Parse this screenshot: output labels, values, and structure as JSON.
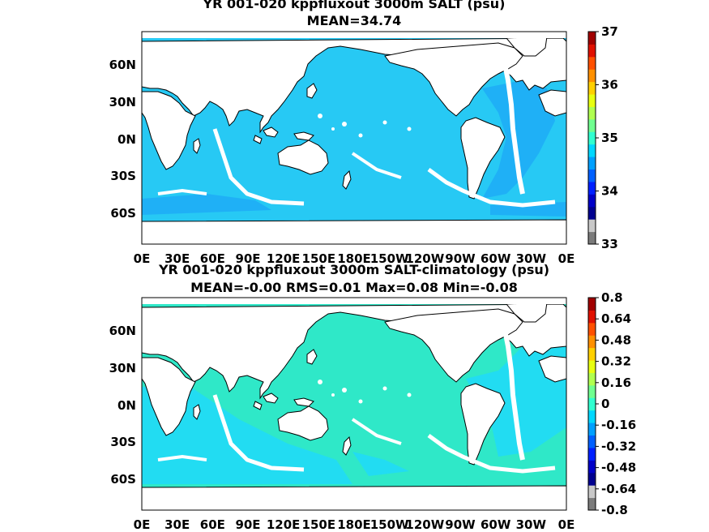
{
  "panels": [
    {
      "title_line1": "YR 001-020 kppfluxout 3000m SALT (psu)",
      "title_line2": "MEAN=34.74",
      "ocean_color": "#27c9f4",
      "patch_color": "#1fb0f6",
      "colorbar": {
        "ticks": [
          "37",
          "36",
          "35",
          "34",
          "33"
        ],
        "colors": [
          "#7b7b7b",
          "#c8c8c8",
          "#00008f",
          "#0000c8",
          "#0020ff",
          "#0060ff",
          "#00a0ff",
          "#00d8ff",
          "#30ffd0",
          "#70ff90",
          "#b0ff50",
          "#e8ff10",
          "#ffd000",
          "#ff9000",
          "#ff5000",
          "#e01000",
          "#a00000"
        ]
      }
    },
    {
      "title_line1": "YR 001-020 kppfluxout 3000m SALT-climatology (psu)",
      "title_line2": "MEAN=-0.00   RMS=0.01   Max=0.08   Min=-0.08",
      "ocean_color": "#2fe8c8",
      "patch_color": "#22dcf2",
      "colorbar": {
        "ticks": [
          "0.8",
          "0.64",
          "0.48",
          "0.32",
          "0.16",
          "0",
          "-0.16",
          "-0.32",
          "-0.48",
          "-0.64",
          "-0.8"
        ],
        "colors": [
          "#7b7b7b",
          "#c8c8c8",
          "#00008f",
          "#0000c8",
          "#0020ff",
          "#0060ff",
          "#00a0ff",
          "#00d8ff",
          "#30ffd0",
          "#70ff90",
          "#b0ff50",
          "#e8ff10",
          "#ffd000",
          "#ff9000",
          "#ff5000",
          "#e01000",
          "#a00000"
        ]
      }
    }
  ],
  "lat_labels": [
    "60N",
    "30N",
    "0N",
    "30S",
    "60S"
  ],
  "lon_labels": [
    "0E",
    "30E",
    "60E",
    "90E",
    "120E",
    "150E",
    "180E",
    "150W",
    "120W",
    "90W",
    "60W",
    "30W",
    "0E"
  ]
}
